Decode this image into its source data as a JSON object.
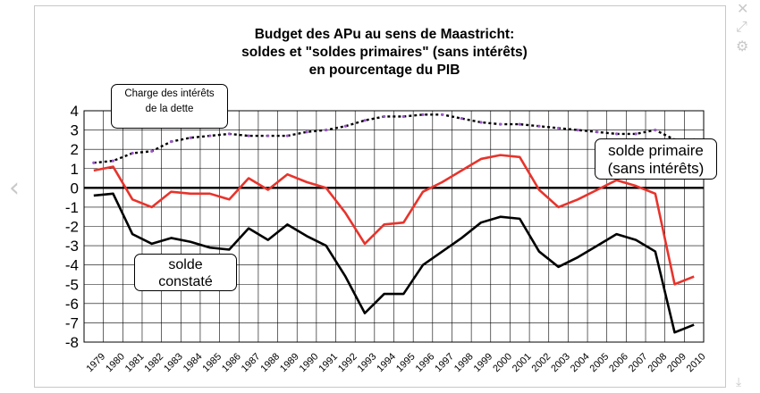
{
  "chart_data": {
    "type": "line",
    "title_lines": [
      "Budget des APu au sens de Maastricht:",
      "soldes et \"soldes primaires\" (sans intérêts)",
      "en pourcentage du  PIB"
    ],
    "categories": [
      "1979",
      "1980",
      "1981",
      "1982",
      "1983",
      "1984",
      "1985",
      "1986",
      "1987",
      "1988",
      "1989",
      "1990",
      "1991",
      "1992",
      "1993",
      "1994",
      "1995",
      "1996",
      "1997",
      "1998",
      "1999",
      "2000",
      "2001",
      "2002",
      "2003",
      "2004",
      "2005",
      "2006",
      "2007",
      "2008",
      "2009",
      "2010"
    ],
    "ylim": [
      -8,
      4
    ],
    "yticks": [
      4,
      3,
      2,
      1,
      0,
      -1,
      -2,
      -3,
      -4,
      -5,
      -6,
      -7,
      -8
    ],
    "grid": true,
    "series": [
      {
        "name": "Charge des intérêts de la dette",
        "color": "#000000",
        "marker_color": "#9b59c9",
        "style": "dotted",
        "values": [
          1.3,
          1.4,
          1.8,
          1.9,
          2.4,
          2.6,
          2.7,
          2.8,
          2.7,
          2.7,
          2.7,
          2.9,
          3.0,
          3.2,
          3.5,
          3.7,
          3.7,
          3.8,
          3.8,
          3.6,
          3.4,
          3.3,
          3.3,
          3.2,
          3.1,
          3.0,
          2.9,
          2.8,
          2.8,
          3.0,
          2.5,
          2.5
        ]
      },
      {
        "name": "solde primaire (sans intérêts)",
        "color": "#e8332b",
        "style": "solid",
        "values": [
          0.9,
          1.1,
          -0.6,
          -1.0,
          -0.2,
          -0.3,
          -0.3,
          -0.6,
          0.5,
          -0.1,
          0.7,
          0.3,
          0.0,
          -1.3,
          -2.9,
          -1.9,
          -1.8,
          -0.2,
          0.3,
          0.9,
          1.5,
          1.7,
          1.6,
          -0.1,
          -1.0,
          -0.6,
          -0.1,
          0.4,
          0.1,
          -0.3,
          -5.0,
          -4.6
        ]
      },
      {
        "name": "solde constaté",
        "color": "#000000",
        "style": "solid",
        "values": [
          -0.4,
          -0.3,
          -2.4,
          -2.9,
          -2.6,
          -2.8,
          -3.1,
          -3.2,
          -2.1,
          -2.7,
          -1.9,
          -2.5,
          -3.0,
          -4.6,
          -6.5,
          -5.5,
          -5.5,
          -4.0,
          -3.3,
          -2.6,
          -1.8,
          -1.5,
          -1.6,
          -3.3,
          -4.1,
          -3.6,
          -3.0,
          -2.4,
          -2.7,
          -3.3,
          -7.5,
          -7.1
        ]
      }
    ],
    "callouts": {
      "interest": [
        "Charge des intérêts",
        "de la dette"
      ],
      "primary": [
        "solde primaire",
        "(sans intérêts)"
      ],
      "constate": [
        "solde",
        "constaté"
      ]
    }
  },
  "nav": {
    "prev_icon": "‹",
    "close_icon": "✕",
    "expand_icon": "⤢",
    "gear_icon": "⚙",
    "download_icon": "⤓"
  }
}
